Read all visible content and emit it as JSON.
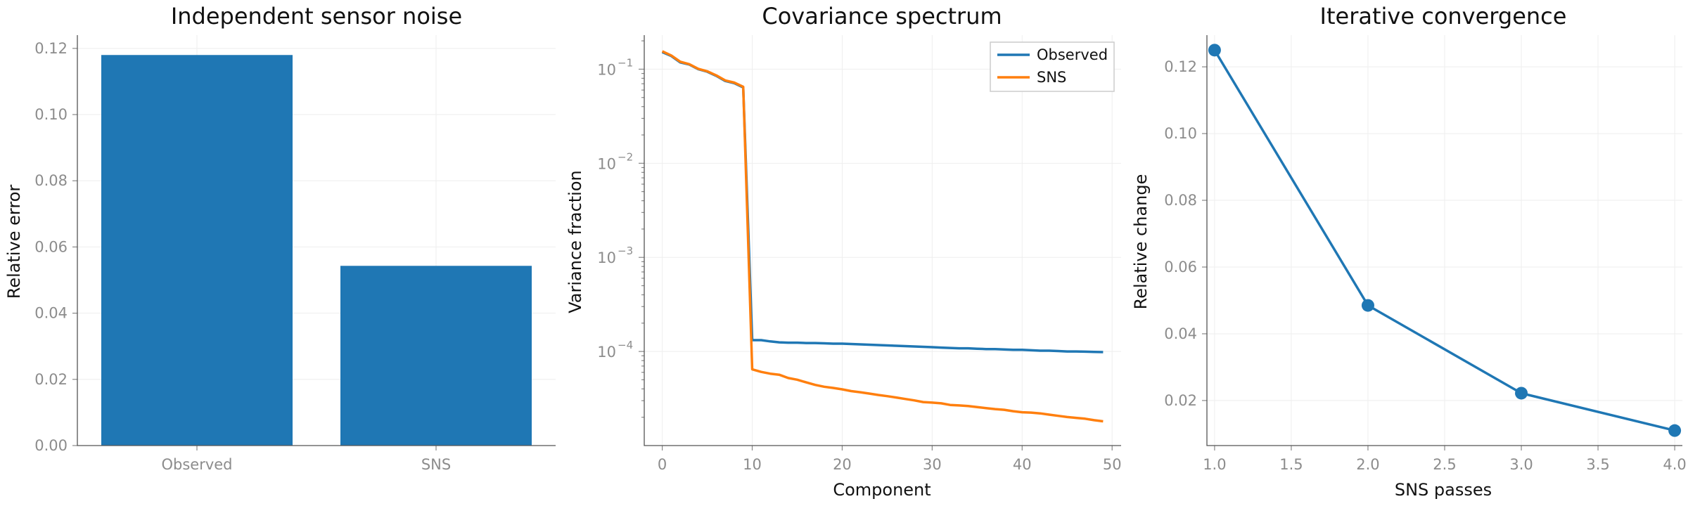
{
  "chart_data": [
    {
      "type": "bar",
      "title": "Independent sensor noise",
      "xlabel": "",
      "ylabel": "Relative error",
      "categories": [
        "Observed",
        "SNS"
      ],
      "values": [
        0.118,
        0.0543
      ],
      "ylim": [
        0,
        0.124
      ],
      "yticks": [
        "0.00",
        "0.02",
        "0.04",
        "0.06",
        "0.08",
        "0.10",
        "0.12"
      ],
      "bar_color": "#1f77b4",
      "grid": true
    },
    {
      "type": "line",
      "title": "Covariance spectrum",
      "xlabel": "Component",
      "ylabel": "Variance fraction",
      "yscale": "log",
      "xlim": [
        -2,
        51
      ],
      "ylim": [
        1e-05,
        0.23
      ],
      "xticks": [
        "0",
        "10",
        "20",
        "30",
        "40",
        "50"
      ],
      "yticks": [
        {
          "base": "10",
          "exp": "−1"
        },
        {
          "base": "10",
          "exp": "−2"
        },
        {
          "base": "10",
          "exp": "−3"
        },
        {
          "base": "10",
          "exp": "−4"
        }
      ],
      "legend": {
        "position": "top-right"
      },
      "grid": true,
      "series": [
        {
          "name": "Observed",
          "color": "#1f77b4",
          "x": [
            0,
            1,
            2,
            3,
            4,
            5,
            6,
            7,
            8,
            9,
            10,
            11,
            12,
            13,
            14,
            15,
            16,
            17,
            18,
            19,
            20,
            21,
            22,
            23,
            24,
            25,
            26,
            27,
            28,
            29,
            30,
            31,
            32,
            33,
            34,
            35,
            36,
            37,
            38,
            39,
            40,
            41,
            42,
            43,
            44,
            45,
            46,
            47,
            48,
            49
          ],
          "y": [
            0.152,
            0.138,
            0.118,
            0.112,
            0.1,
            0.094,
            0.085,
            0.075,
            0.071,
            0.064,
            0.000132,
            0.000132,
            0.000128,
            0.000125,
            0.000124,
            0.000124,
            0.000123,
            0.000123,
            0.000122,
            0.000121,
            0.000121,
            0.00012,
            0.000119,
            0.000118,
            0.000117,
            0.000116,
            0.000115,
            0.000114,
            0.000113,
            0.000112,
            0.000111,
            0.00011,
            0.000109,
            0.000108,
            0.000108,
            0.000107,
            0.000106,
            0.000106,
            0.000105,
            0.000104,
            0.000104,
            0.000103,
            0.000102,
            0.000102,
            0.000101,
            0.0001,
            0.0001,
            9.95e-05,
            9.9e-05,
            9.85e-05
          ]
        },
        {
          "name": "SNS",
          "color": "#ff7f0e",
          "x": [
            0,
            1,
            2,
            3,
            4,
            5,
            6,
            7,
            8,
            9,
            10,
            11,
            12,
            13,
            14,
            15,
            16,
            17,
            18,
            19,
            20,
            21,
            22,
            23,
            24,
            25,
            26,
            27,
            28,
            29,
            30,
            31,
            32,
            33,
            34,
            35,
            36,
            37,
            38,
            39,
            40,
            41,
            42,
            43,
            44,
            45,
            46,
            47,
            48,
            49
          ],
          "y": [
            0.155,
            0.14,
            0.12,
            0.113,
            0.101,
            0.095,
            0.086,
            0.076,
            0.072,
            0.065,
            6.45e-05,
            6.06e-05,
            5.81e-05,
            5.66e-05,
            5.22e-05,
            5.01e-05,
            4.69e-05,
            4.41e-05,
            4.22e-05,
            4.1e-05,
            3.96e-05,
            3.79e-05,
            3.69e-05,
            3.57e-05,
            3.45e-05,
            3.35e-05,
            3.24e-05,
            3.13e-05,
            3.02e-05,
            2.9e-05,
            2.86e-05,
            2.81e-05,
            2.7e-05,
            2.67e-05,
            2.63e-05,
            2.56e-05,
            2.5e-05,
            2.44e-05,
            2.4e-05,
            2.32e-05,
            2.26e-05,
            2.24e-05,
            2.2e-05,
            2.13e-05,
            2.07e-05,
            2.01e-05,
            1.97e-05,
            1.93e-05,
            1.86e-05,
            1.81e-05
          ]
        }
      ]
    },
    {
      "type": "line",
      "title": "Iterative convergence",
      "xlabel": "SNS passes",
      "ylabel": "Relative change",
      "x": [
        1,
        2,
        3,
        4
      ],
      "values": [
        0.125,
        0.0485,
        0.0222,
        0.011
      ],
      "xlim": [
        0.95,
        4.05
      ],
      "ylim": [
        0.0065,
        0.1295
      ],
      "xticks": [
        "1.0",
        "1.5",
        "2.0",
        "2.5",
        "3.0",
        "3.5",
        "4.0"
      ],
      "yticks": [
        "0.02",
        "0.04",
        "0.06",
        "0.08",
        "0.10",
        "0.12"
      ],
      "markers": true,
      "color": "#1f77b4",
      "grid": true
    }
  ]
}
